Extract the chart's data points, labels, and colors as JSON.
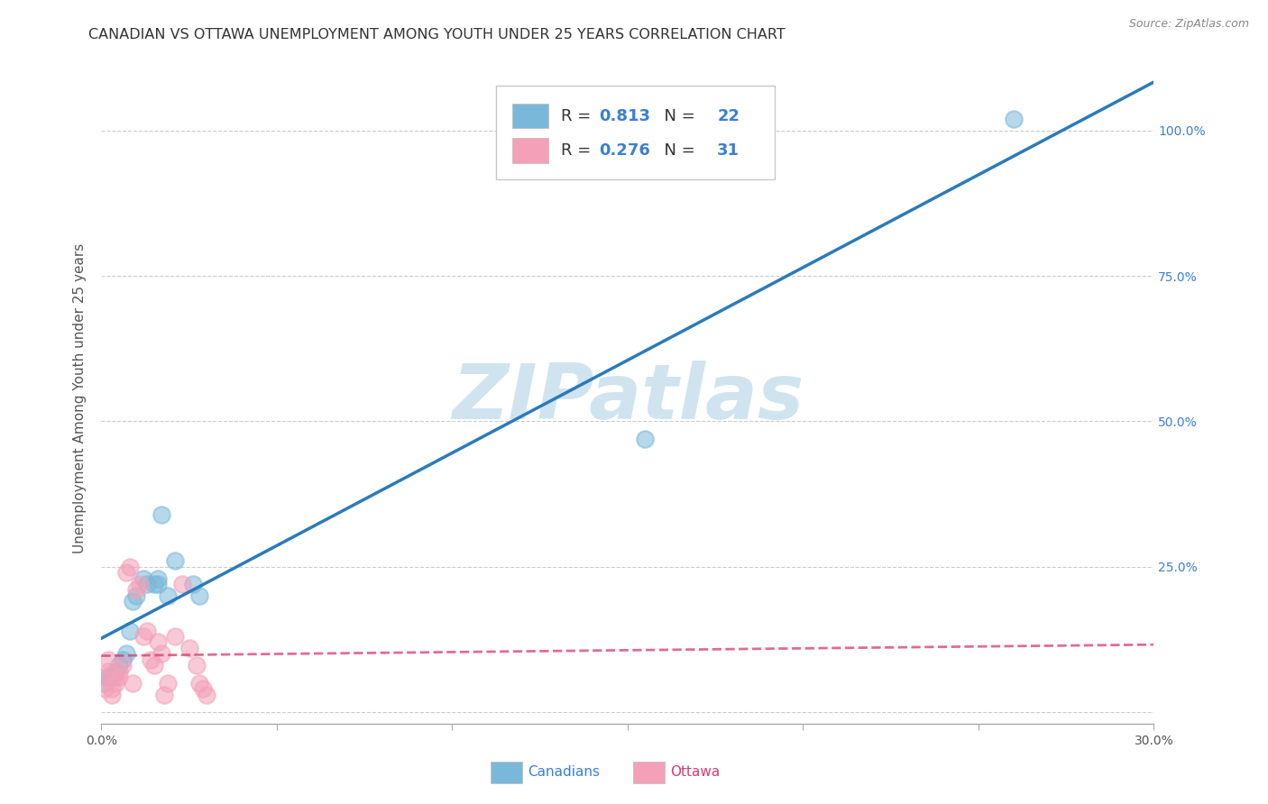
{
  "title": "CANADIAN VS OTTAWA UNEMPLOYMENT AMONG YOUTH UNDER 25 YEARS CORRELATION CHART",
  "source": "Source: ZipAtlas.com",
  "ylabel": "Unemployment Among Youth under 25 years",
  "xlim": [
    0.0,
    0.3
  ],
  "ylim": [
    -0.02,
    1.1
  ],
  "canadians_x": [
    0.001,
    0.002,
    0.003,
    0.004,
    0.005,
    0.006,
    0.007,
    0.008,
    0.009,
    0.01,
    0.012,
    0.013,
    0.015,
    0.016,
    0.016,
    0.017,
    0.019,
    0.021,
    0.026,
    0.028,
    0.155,
    0.26
  ],
  "canadians_y": [
    0.05,
    0.06,
    0.06,
    0.07,
    0.08,
    0.09,
    0.1,
    0.14,
    0.19,
    0.2,
    0.23,
    0.22,
    0.22,
    0.23,
    0.22,
    0.34,
    0.2,
    0.26,
    0.22,
    0.2,
    0.47,
    1.02
  ],
  "ottawa_x": [
    0.001,
    0.001,
    0.002,
    0.002,
    0.003,
    0.003,
    0.004,
    0.004,
    0.005,
    0.005,
    0.006,
    0.007,
    0.008,
    0.009,
    0.01,
    0.011,
    0.012,
    0.013,
    0.014,
    0.015,
    0.016,
    0.017,
    0.018,
    0.019,
    0.021,
    0.023,
    0.025,
    0.027,
    0.028,
    0.029,
    0.03
  ],
  "ottawa_y": [
    0.04,
    0.06,
    0.07,
    0.09,
    0.03,
    0.04,
    0.05,
    0.06,
    0.07,
    0.06,
    0.08,
    0.24,
    0.25,
    0.05,
    0.21,
    0.22,
    0.13,
    0.14,
    0.09,
    0.08,
    0.12,
    0.1,
    0.03,
    0.05,
    0.13,
    0.22,
    0.11,
    0.08,
    0.05,
    0.04,
    0.03
  ],
  "canadian_R": 0.813,
  "canadian_N": 22,
  "ottawa_R": 0.276,
  "ottawa_N": 31,
  "canadian_scatter_color": "#7ab8d9",
  "ottawa_scatter_color": "#f4a0b8",
  "canadian_line_color": "#2b7bba",
  "ottawa_line_color": "#d63b6e",
  "highlight_color": "#3a7fd5",
  "background_color": "#ffffff",
  "watermark": "ZIPatlas",
  "watermark_color": "#d0e4f0",
  "title_fontsize": 11.5,
  "label_fontsize": 11,
  "tick_fontsize": 10,
  "legend_fontsize": 13
}
